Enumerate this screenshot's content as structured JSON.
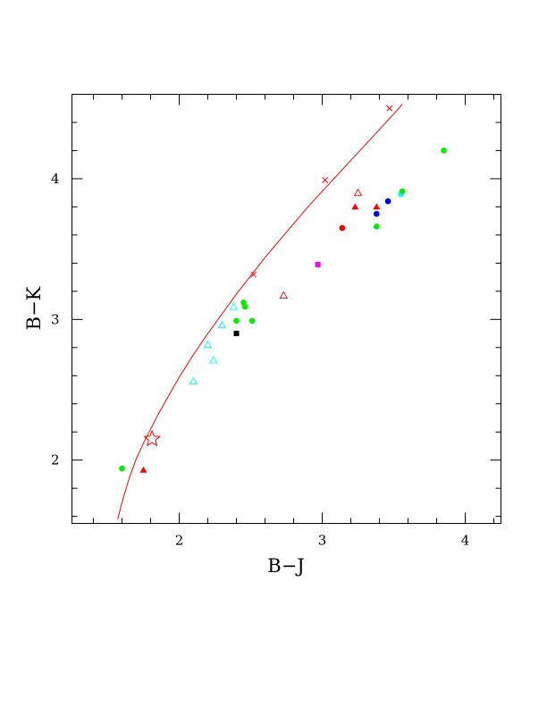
{
  "chart_data": {
    "type": "scatter",
    "title": "",
    "xlabel": "B−J",
    "ylabel": "B−K",
    "xlim": [
      1.25,
      4.25
    ],
    "ylim": [
      1.55,
      4.6
    ],
    "x_ticks": [
      2,
      3,
      4
    ],
    "x_tick_labels": [
      "2",
      "3",
      "4"
    ],
    "y_ticks": [
      2,
      3,
      4
    ],
    "y_tick_labels": [
      "2",
      "3",
      "4"
    ],
    "x_minor_step": 0.2,
    "y_minor_step": 0.2,
    "grid": false,
    "curve": {
      "color": "#ff0000",
      "points": [
        [
          1.57,
          1.58
        ],
        [
          1.6,
          1.7
        ],
        [
          1.65,
          1.87
        ],
        [
          1.7,
          2.01
        ],
        [
          1.75,
          2.12
        ],
        [
          1.8,
          2.22
        ],
        [
          1.85,
          2.32
        ],
        [
          1.9,
          2.41
        ],
        [
          2.0,
          2.59
        ],
        [
          2.1,
          2.75
        ],
        [
          2.2,
          2.9
        ],
        [
          2.3,
          3.04
        ],
        [
          2.4,
          3.18
        ],
        [
          2.5,
          3.31
        ],
        [
          2.6,
          3.44
        ],
        [
          2.7,
          3.56
        ],
        [
          2.8,
          3.68
        ],
        [
          2.9,
          3.8
        ],
        [
          3.0,
          3.91
        ],
        [
          3.1,
          4.02
        ],
        [
          3.2,
          4.13
        ],
        [
          3.3,
          4.24
        ],
        [
          3.4,
          4.35
        ],
        [
          3.5,
          4.46
        ],
        [
          3.56,
          4.53
        ]
      ],
      "cross_markers": [
        [
          2.52,
          3.32
        ],
        [
          3.02,
          3.99
        ],
        [
          3.47,
          4.5
        ]
      ],
      "star_marker": [
        1.81,
        2.15
      ]
    },
    "points": [
      {
        "x": 1.6,
        "y": 1.94,
        "shape": "circle",
        "color": "#00ee00"
      },
      {
        "x": 1.75,
        "y": 1.93,
        "shape": "triangle-filled",
        "color": "#ff0000"
      },
      {
        "x": 2.1,
        "y": 2.56,
        "shape": "triangle-open",
        "color": "#00ffff"
      },
      {
        "x": 2.2,
        "y": 2.82,
        "shape": "triangle-open",
        "color": "#00ffff"
      },
      {
        "x": 2.24,
        "y": 2.71,
        "shape": "triangle-open",
        "color": "#00ffff"
      },
      {
        "x": 2.3,
        "y": 2.96,
        "shape": "triangle-open",
        "color": "#00ffff"
      },
      {
        "x": 2.38,
        "y": 3.09,
        "shape": "triangle-open",
        "color": "#00ffff"
      },
      {
        "x": 2.4,
        "y": 2.9,
        "shape": "square",
        "color": "#000000"
      },
      {
        "x": 2.4,
        "y": 2.99,
        "shape": "circle",
        "color": "#00ee00"
      },
      {
        "x": 2.45,
        "y": 3.12,
        "shape": "circle",
        "color": "#00ee00"
      },
      {
        "x": 2.46,
        "y": 3.09,
        "shape": "circle",
        "color": "#00ee00"
      },
      {
        "x": 2.51,
        "y": 2.99,
        "shape": "circle",
        "color": "#00ee00"
      },
      {
        "x": 2.73,
        "y": 3.17,
        "shape": "triangle-open",
        "color": "#ff0000"
      },
      {
        "x": 2.97,
        "y": 3.39,
        "shape": "square",
        "color": "#ff00ff"
      },
      {
        "x": 3.14,
        "y": 3.65,
        "shape": "circle",
        "color": "#ff0000"
      },
      {
        "x": 3.23,
        "y": 3.8,
        "shape": "triangle-filled",
        "color": "#ff0000"
      },
      {
        "x": 3.25,
        "y": 3.9,
        "shape": "triangle-open",
        "color": "#ff0000"
      },
      {
        "x": 3.38,
        "y": 3.8,
        "shape": "triangle-filled",
        "color": "#ff0000"
      },
      {
        "x": 3.38,
        "y": 3.75,
        "shape": "circle",
        "color": "#0000ff"
      },
      {
        "x": 3.38,
        "y": 3.66,
        "shape": "circle",
        "color": "#00ee00"
      },
      {
        "x": 3.46,
        "y": 3.84,
        "shape": "circle",
        "color": "#0000ff"
      },
      {
        "x": 3.55,
        "y": 3.89,
        "shape": "circle",
        "color": "#00ffff"
      },
      {
        "x": 3.56,
        "y": 3.91,
        "shape": "circle",
        "color": "#00ee00"
      },
      {
        "x": 3.85,
        "y": 4.2,
        "shape": "circle",
        "color": "#00ee00"
      }
    ]
  }
}
